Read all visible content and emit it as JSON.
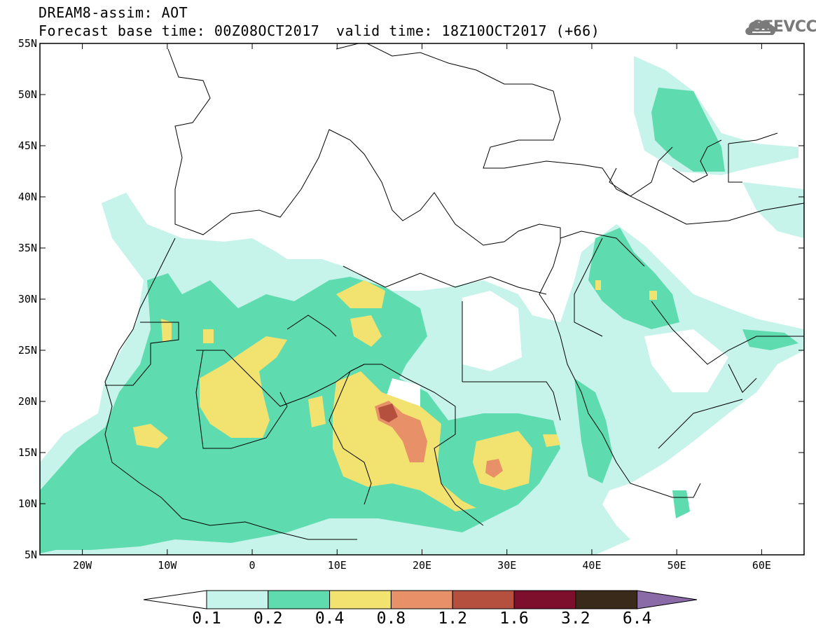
{
  "header": {
    "title_line1": "DREAM8-assim: AOT",
    "title_line2": "Forecast base time: 00Z08OCT2017",
    "valid_time": "valid time: 18Z10OCT2017 (+66)",
    "logo_text": "SEEVCCC",
    "logo_icon": "cloud-icon"
  },
  "map": {
    "projection": "lat-lon",
    "lon_range": [
      -25,
      65
    ],
    "lat_range": [
      5,
      55
    ],
    "lat_labels": [
      "55N",
      "50N",
      "45N",
      "40N",
      "35N",
      "30N",
      "25N",
      "20N",
      "15N",
      "10N",
      "5N"
    ],
    "lon_labels": [
      "20W",
      "10W",
      "0",
      "10E",
      "20E",
      "30E",
      "40E",
      "50E",
      "60E"
    ],
    "variable": "AOT"
  },
  "colorbar": {
    "labels": [
      "0.1",
      "0.2",
      "0.4",
      "0.8",
      "1.2",
      "1.6",
      "3.2",
      "6.4"
    ],
    "colors": [
      "#c6f3ea",
      "#5fdcaf",
      "#f2e370",
      "#e89068",
      "#b5503f",
      "#7e0f2c",
      "#3a2a1a",
      "#8b6aa8"
    ],
    "under_color": "#ffffff"
  }
}
